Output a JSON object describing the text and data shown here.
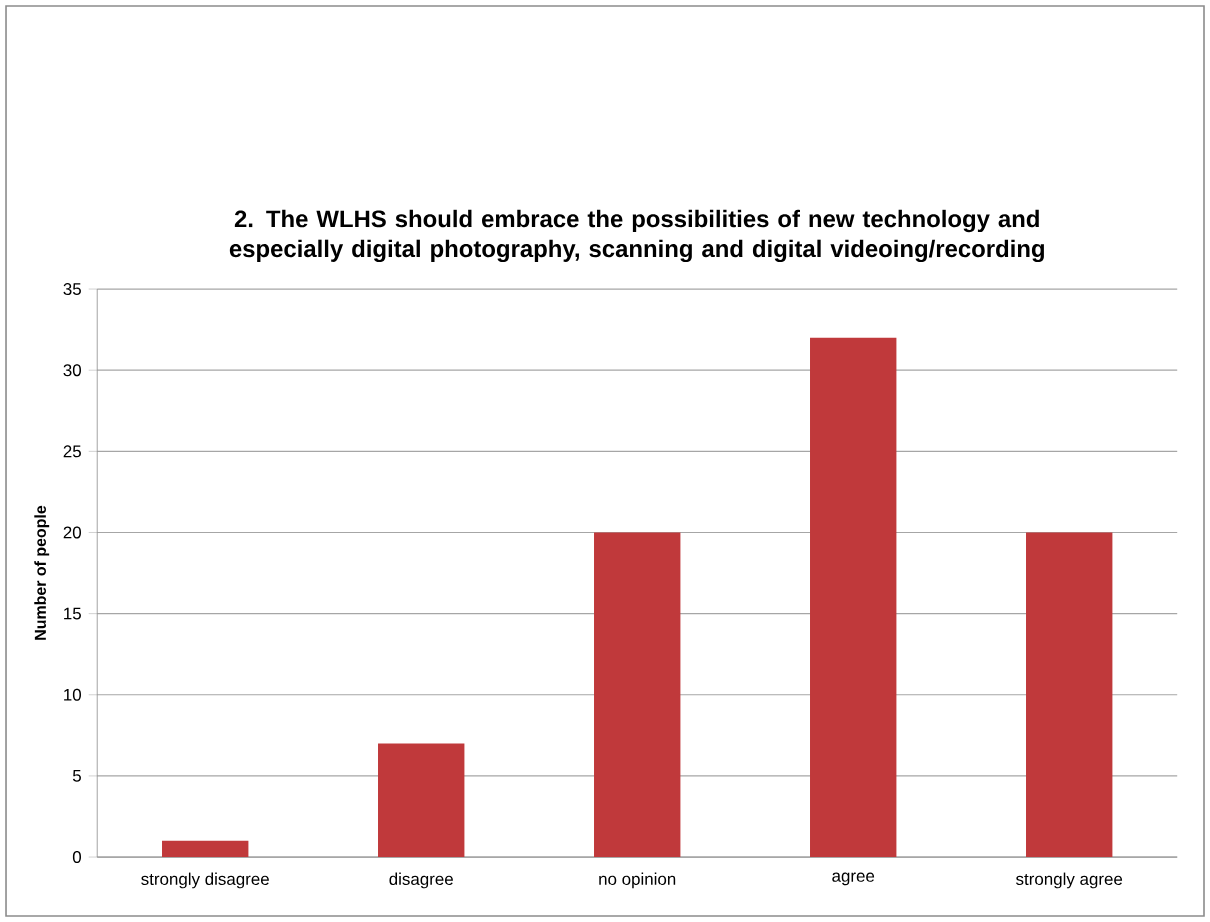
{
  "chart_data": {
    "type": "bar",
    "title": "2. The WLHS should embrace the possibilities of new technology and especially digital photography, scanning and digital videoing/recording",
    "ylabel": "Number of people",
    "categories": [
      "strongly disagree",
      "disagree",
      "no opinion",
      "agree",
      "strongly agree"
    ],
    "values": [
      1,
      7,
      20,
      32,
      20
    ],
    "color": "#c0393b",
    "ylim": [
      0,
      35
    ],
    "yticks": [
      0,
      5,
      10,
      15,
      20,
      25,
      30,
      35
    ],
    "grid": "y"
  }
}
